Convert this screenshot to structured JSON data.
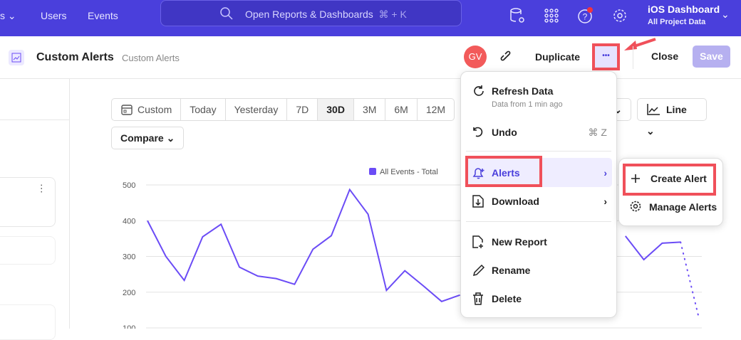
{
  "topbar": {
    "nav": [
      "Users",
      "Events"
    ],
    "search_placeholder": "Open Reports & Dashboards",
    "search_shortcut": "⌘ + K",
    "project_name": "iOS Dashboard",
    "project_scope": "All Project Data",
    "brand_color": "#4a3fdc"
  },
  "header": {
    "title": "Custom Alerts",
    "subtitle": "Custom Alerts",
    "avatar": "GV",
    "duplicate": "Duplicate",
    "more": "•••",
    "close": "Close",
    "save": "Save"
  },
  "toolbar": {
    "ranges": [
      "Custom",
      "Today",
      "Yesterday",
      "7D",
      "30D",
      "3M",
      "6M",
      "12M"
    ],
    "selected": "30D",
    "compare": "Compare",
    "chart_type": "Line"
  },
  "menu": {
    "refresh": "Refresh Data",
    "refresh_sub": "Data from 1 min ago",
    "undo": "Undo",
    "undo_shortcut": "⌘ Z",
    "alerts": "Alerts",
    "download": "Download",
    "new_report": "New Report",
    "rename": "Rename",
    "delete": "Delete"
  },
  "submenu": {
    "create": "Create Alert",
    "manage": "Manage Alerts"
  },
  "chart_data": {
    "type": "line",
    "legend": "All Events - Total",
    "yticks": [
      100,
      200,
      300,
      400,
      500
    ],
    "ylim": [
      100,
      500
    ],
    "grid": true,
    "color": "#6b4cf6",
    "values": [
      400,
      300,
      233,
      355,
      390,
      270,
      245,
      238,
      222,
      320,
      358,
      487,
      418,
      205,
      260,
      218,
      174,
      192,
      null,
      null,
      null,
      null,
      null,
      null,
      null,
      null,
      357,
      291,
      337,
      340,
      127
    ],
    "partial_from_index": 29
  }
}
